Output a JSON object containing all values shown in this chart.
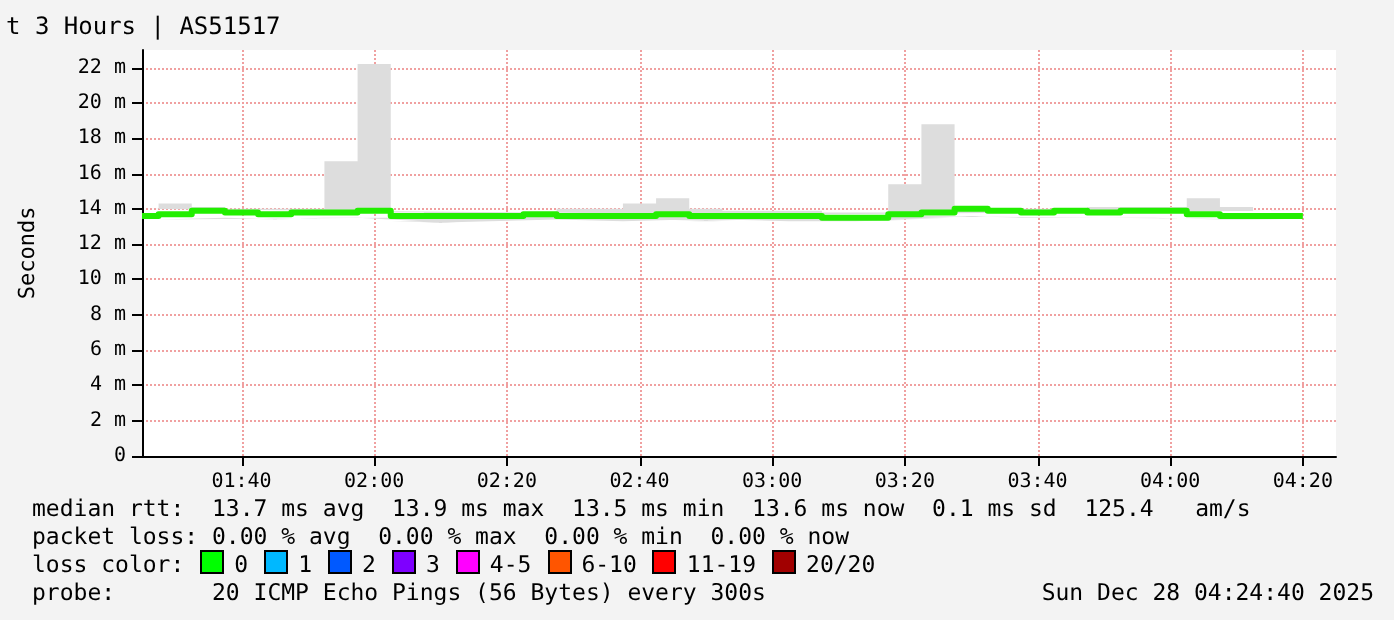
{
  "chart_data": {
    "type": "step",
    "title": "t 3 Hours | AS51517",
    "ylabel": "Seconds",
    "x": [
      "2025-12-28T01:25",
      "2025-12-28T01:30",
      "2025-12-28T01:35",
      "2025-12-28T01:40",
      "2025-12-28T01:45",
      "2025-12-28T01:50",
      "2025-12-28T01:55",
      "2025-12-28T02:00",
      "2025-12-28T02:05",
      "2025-12-28T02:10",
      "2025-12-28T02:15",
      "2025-12-28T02:20",
      "2025-12-28T02:25",
      "2025-12-28T02:30",
      "2025-12-28T02:35",
      "2025-12-28T02:40",
      "2025-12-28T02:45",
      "2025-12-28T02:50",
      "2025-12-28T02:55",
      "2025-12-28T03:00",
      "2025-12-28T03:05",
      "2025-12-28T03:10",
      "2025-12-28T03:15",
      "2025-12-28T03:20",
      "2025-12-28T03:25",
      "2025-12-28T03:30",
      "2025-12-28T03:35",
      "2025-12-28T03:40",
      "2025-12-28T03:45",
      "2025-12-28T03:50",
      "2025-12-28T03:55",
      "2025-12-28T04:00",
      "2025-12-28T04:05",
      "2025-12-28T04:10",
      "2025-12-28T04:15",
      "2025-12-28T04:20"
    ],
    "series": [
      {
        "color": "#22ee00",
        "values": [
          13.6,
          13.7,
          13.9,
          13.8,
          13.7,
          13.8,
          13.8,
          13.9,
          13.6,
          13.6,
          13.6,
          13.6,
          13.7,
          13.6,
          13.6,
          13.6,
          13.7,
          13.6,
          13.6,
          13.6,
          13.6,
          13.5,
          13.5,
          13.7,
          13.8,
          14.0,
          13.9,
          13.8,
          13.9,
          13.8,
          13.9,
          13.9,
          13.7,
          13.6,
          13.6,
          13.6
        ],
        "lower": [
          13.4,
          13.4,
          13.5,
          13.5,
          13.4,
          13.5,
          13.5,
          13.5,
          13.3,
          13.2,
          13.3,
          13.3,
          13.4,
          13.4,
          13.3,
          13.3,
          13.4,
          13.3,
          13.4,
          13.3,
          13.3,
          13.3,
          13.3,
          13.4,
          13.5,
          13.6,
          13.5,
          13.5,
          13.5,
          13.5,
          13.5,
          13.5,
          13.4,
          13.4,
          13.4,
          13.4
        ],
        "upper": [
          14.0,
          14.3,
          14.1,
          14.0,
          14.0,
          14.0,
          16.7,
          22.2,
          13.8,
          13.7,
          13.7,
          13.7,
          13.8,
          14.0,
          14.0,
          14.3,
          14.6,
          14.0,
          13.9,
          13.9,
          13.9,
          13.8,
          13.8,
          15.4,
          18.8,
          14.1,
          14.0,
          14.0,
          14.0,
          14.1,
          14.1,
          14.1,
          14.6,
          14.1,
          13.9,
          13.9
        ]
      }
    ],
    "xlim": [
      "2025-12-28T01:25",
      "2025-12-28T04:25"
    ],
    "xticks": [
      {
        "value": "2025-12-28T01:40",
        "label": "01:40"
      },
      {
        "value": "2025-12-28T02:00",
        "label": "02:00"
      },
      {
        "value": "2025-12-28T02:20",
        "label": "02:20"
      },
      {
        "value": "2025-12-28T02:40",
        "label": "02:40"
      },
      {
        "value": "2025-12-28T03:00",
        "label": "03:00"
      },
      {
        "value": "2025-12-28T03:20",
        "label": "03:20"
      },
      {
        "value": "2025-12-28T03:40",
        "label": "03:40"
      },
      {
        "value": "2025-12-28T04:00",
        "label": "04:00"
      },
      {
        "value": "2025-12-28T04:20",
        "label": "04:20"
      }
    ],
    "ylim": [
      0,
      23
    ],
    "yticks": [
      0,
      {
        "value": 2,
        "label": "2 m"
      },
      {
        "value": 4,
        "label": "4 m"
      },
      {
        "value": 6,
        "label": "6 m"
      },
      {
        "value": 8,
        "label": "8 m"
      },
      {
        "value": 10,
        "label": "10 m"
      },
      {
        "value": 12,
        "label": "12 m"
      },
      {
        "value": 14,
        "label": "14 m"
      },
      {
        "value": 16,
        "label": "16 m"
      },
      {
        "value": 18,
        "label": "18 m"
      },
      {
        "value": 20,
        "label": "20 m"
      },
      {
        "value": 22,
        "label": "22 m"
      }
    ],
    "grid": true,
    "marker": "none",
    "line_style": "solid",
    "annotations": [
      "median rtt:  13.7 ms avg  13.9 ms max  13.5 ms min  13.6 ms now  0.1 ms sd  125.4   am/s",
      "packet loss: 0.00 % avg  0.00 % max  0.00 % min  0.00 % now",
      "loss color:  0  1  2  3  4-5  6-10  11-19  20/20",
      "probe:       20 ICMP Echo Pings (56 Bytes) every 300s",
      "Sun Dec 28 04:24:40 2025"
    ]
  }
}
